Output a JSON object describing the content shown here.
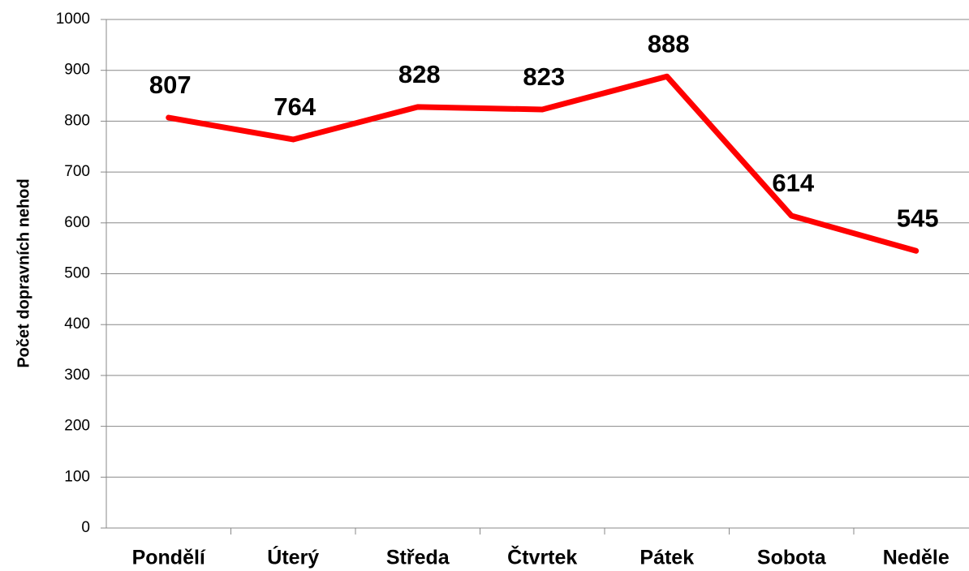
{
  "chart_data": {
    "type": "line",
    "y_axis_label": "Počet dopravních nehod",
    "categories": [
      "Pondělí",
      "Úterý",
      "Středa",
      "Čtvrtek",
      "Pátek",
      "Sobota",
      "Neděle"
    ],
    "series": [
      {
        "name": "Počet dopravních nehod",
        "color": "#ff0000",
        "values": [
          807,
          764,
          828,
          823,
          888,
          614,
          545
        ]
      }
    ],
    "ylim": [
      0,
      1000
    ],
    "yticks": [
      0,
      100,
      200,
      300,
      400,
      500,
      600,
      700,
      800,
      900,
      1000
    ],
    "grid": true
  }
}
